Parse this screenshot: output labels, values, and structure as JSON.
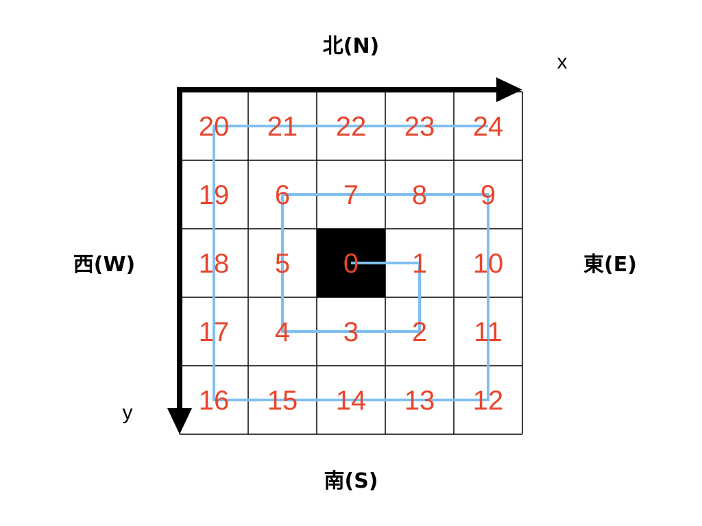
{
  "directions": {
    "north": "北(N)",
    "south": "南(S)",
    "west": "西(W)",
    "east": "東(E)"
  },
  "axes": {
    "x_label": "x",
    "y_label": "y"
  },
  "grid": {
    "rows": [
      [
        "20",
        "21",
        "22",
        "23",
        "24"
      ],
      [
        "19",
        "6",
        "7",
        "8",
        "9"
      ],
      [
        "18",
        "5",
        "0",
        "1",
        "10"
      ],
      [
        "17",
        "4",
        "3",
        "2",
        "11"
      ],
      [
        "16",
        "15",
        "14",
        "13",
        "12"
      ]
    ],
    "center_cell_color": "#000000"
  },
  "spiral_path_order": [
    "0",
    "1",
    "2",
    "3",
    "4",
    "5",
    "6",
    "7",
    "8",
    "9",
    "10",
    "11",
    "12",
    "13",
    "14",
    "15",
    "16",
    "17",
    "18",
    "19",
    "20",
    "21",
    "22",
    "23",
    "24"
  ],
  "colors": {
    "number": "#e8452c",
    "path": "#7fbfef",
    "axis": "#000000",
    "grid_line": "#000000"
  }
}
